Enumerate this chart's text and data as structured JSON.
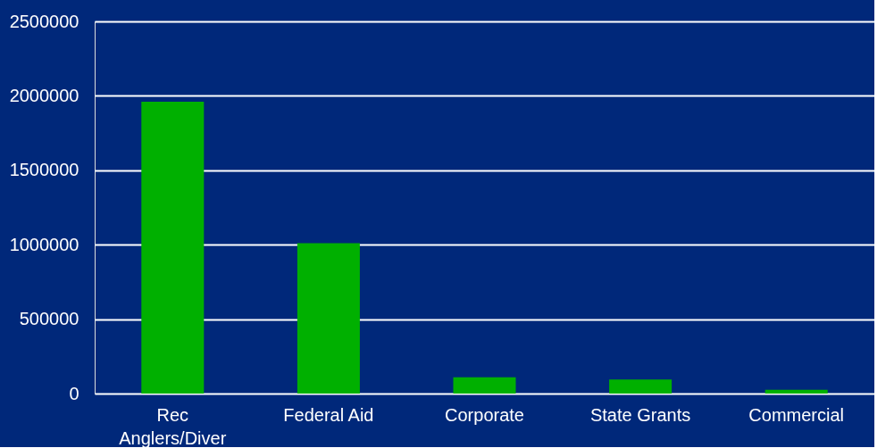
{
  "chart_data": {
    "type": "bar",
    "categories": [
      "Rec Anglers/Diver",
      "Federal Aid",
      "Corporate",
      "State Grants",
      "Commercial"
    ],
    "values": [
      1960000,
      1010000,
      110000,
      95000,
      25000
    ],
    "color": "#00b000",
    "ylim": [
      0,
      2500000
    ],
    "yticks": [
      0,
      500000,
      1000000,
      1500000,
      2000000,
      2500000
    ],
    "grid": "y"
  }
}
